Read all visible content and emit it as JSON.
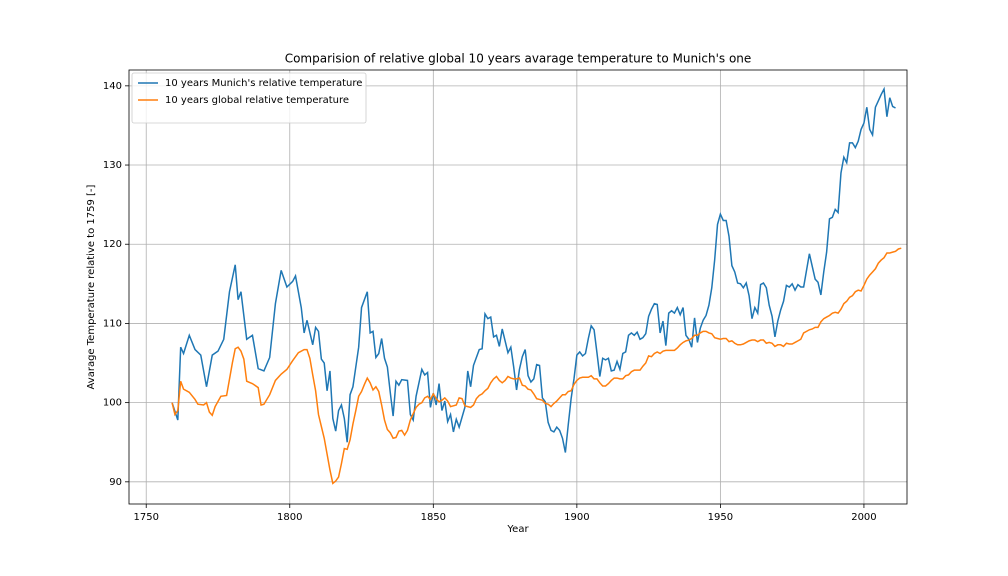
{
  "chart_data": {
    "type": "line",
    "title": "Comparision of relative global 10 years avarage temperature to Munich's one",
    "x_label": "Year",
    "y_label": "Avarage Temperature relative to 1759 [-]",
    "xlim": [
      1744,
      2015
    ],
    "ylim": [
      87.2,
      142
    ],
    "xticks": [
      1750,
      1800,
      1850,
      1900,
      1950,
      2000
    ],
    "yticks": [
      90,
      100,
      110,
      120,
      130,
      140
    ],
    "grid": true,
    "legend": "upper-left",
    "series": [
      {
        "name": "10 years Munich's relative temperature",
        "color": "#1f77b4",
        "x": [
          1759,
          1761,
          1762,
          1763,
          1765,
          1767,
          1769,
          1771,
          1773,
          1775,
          1777,
          1779,
          1781,
          1782,
          1783,
          1785,
          1787,
          1789,
          1791,
          1793,
          1795,
          1797,
          1799,
          1801,
          1802,
          1804,
          1805,
          1806,
          1808,
          1809,
          1810,
          1811,
          1812,
          1813,
          1814,
          1815,
          1816,
          1817,
          1818,
          1819,
          1820,
          1821,
          1822,
          1824,
          1825,
          1827,
          1828,
          1829,
          1830,
          1831,
          1832,
          1833,
          1834,
          1835,
          1836,
          1837,
          1838,
          1839,
          1841,
          1842,
          1843,
          1844,
          1846,
          1847,
          1848,
          1849,
          1850,
          1851,
          1852,
          1853,
          1854,
          1855,
          1856,
          1857,
          1858,
          1859,
          1861,
          1862,
          1863,
          1864,
          1866,
          1867,
          1868,
          1869,
          1870,
          1871,
          1872,
          1873,
          1874,
          1875,
          1876,
          1877,
          1878,
          1879,
          1880,
          1881,
          1882,
          1883,
          1884,
          1885,
          1886,
          1887,
          1888,
          1889,
          1890,
          1891,
          1892,
          1893,
          1894,
          1895,
          1896,
          1897,
          1898,
          1899,
          1900,
          1901,
          1902,
          1903,
          1904,
          1905,
          1906,
          1907,
          1908,
          1909,
          1910,
          1911,
          1912,
          1913,
          1914,
          1915,
          1916,
          1917,
          1918,
          1919,
          1920,
          1921,
          1922,
          1923,
          1924,
          1925,
          1926,
          1927,
          1928,
          1929,
          1930,
          1931,
          1932,
          1933,
          1934,
          1935,
          1936,
          1937,
          1938,
          1939,
          1940,
          1941,
          1942,
          1943,
          1944,
          1945,
          1946,
          1947,
          1948,
          1949,
          1950,
          1951,
          1952,
          1953,
          1954,
          1955,
          1956,
          1957,
          1958,
          1959,
          1960,
          1961,
          1962,
          1963,
          1964,
          1965,
          1966,
          1967,
          1968,
          1969,
          1970,
          1971,
          1972,
          1973,
          1974,
          1975,
          1976,
          1977,
          1978,
          1979,
          1980,
          1981,
          1982,
          1983,
          1984,
          1985,
          1986,
          1987,
          1988,
          1989,
          1990,
          1991,
          1992,
          1993,
          1994,
          1995,
          1996,
          1997,
          1998,
          1999,
          2000,
          2001,
          2002,
          2003,
          2004,
          2005,
          2006,
          2007,
          2008,
          2009,
          2010,
          2011
        ],
        "values": [
          100,
          97.8,
          107,
          106.2,
          108.5,
          106.7,
          106,
          102,
          106,
          106.5,
          108,
          114,
          117.4,
          113,
          114,
          108,
          108.5,
          104.3,
          104,
          105.7,
          112.5,
          116.7,
          114.6,
          115.3,
          116,
          112,
          108.8,
          110.4,
          107.3,
          109.5,
          109,
          105.5,
          105,
          101.5,
          104,
          98,
          96.4,
          99,
          99.7,
          98,
          95,
          101,
          102,
          107,
          112,
          114,
          108.8,
          109,
          105.7,
          106.2,
          108.1,
          105.6,
          104.5,
          101.3,
          98.3,
          102.7,
          102.2,
          102.9,
          102.8,
          98.5,
          97.8,
          100.8,
          104.2,
          103.5,
          103.8,
          99.4,
          101.2,
          99.7,
          102.4,
          99,
          100.2,
          97.6,
          98.5,
          96.3,
          97.9,
          96.9,
          99.4,
          104,
          102,
          104.7,
          106.7,
          106.8,
          111.2,
          110.6,
          110.8,
          108.3,
          108.5,
          107.1,
          109.3,
          107.8,
          106.3,
          107,
          104.5,
          101.6,
          104.2,
          105.8,
          106.7,
          103.4,
          102.6,
          103,
          104.8,
          104.7,
          100.6,
          100.1,
          97.5,
          96.5,
          96.3,
          96.9,
          96.5,
          95.5,
          93.7,
          97.2,
          100.5,
          103,
          106,
          106.4,
          105.9,
          106.2,
          108.1,
          109.7,
          109.2,
          106.3,
          103.3,
          105.6,
          105.4,
          105.6,
          104,
          104.1,
          105.2,
          104.2,
          106.2,
          106.4,
          108.5,
          108.8,
          108.5,
          108.9,
          108,
          108.2,
          108.7,
          110.9,
          111.8,
          112.5,
          112.4,
          108.8,
          110.3,
          107.2,
          111.3,
          111.6,
          111.3,
          112,
          111.1,
          112,
          108.5,
          108,
          107,
          110.7,
          107.6,
          109.4,
          110.4,
          111,
          112.3,
          114.5,
          118,
          122.5,
          123.8,
          123,
          123,
          121,
          117.3,
          116.5,
          115.1,
          115,
          114.5,
          115.1,
          113.5,
          110.6,
          112,
          111.3,
          114.9,
          115.1,
          114.5,
          112.3,
          110.9,
          108.3,
          110.3,
          111.7,
          112.8,
          114.8,
          114.6,
          115,
          114.2,
          114.9,
          114.6,
          114.6,
          116.7,
          118.8,
          117.2,
          115.6,
          115.2,
          113.6,
          116.5,
          119,
          123.2,
          123.4,
          124.4,
          124,
          129,
          131,
          130.3,
          132.8,
          132.8,
          132.2,
          133,
          134.5,
          135.3,
          137.3,
          134.5,
          133.8,
          137.3,
          138.1,
          138.9,
          139.6,
          136.1,
          138.5,
          137.4,
          137.2
        ]
      },
      {
        "name": "10 years global relative temperature",
        "color": "#ff7f0e",
        "x": [
          1759,
          1760,
          1761,
          1762,
          1763,
          1765,
          1767,
          1768,
          1770,
          1771,
          1772,
          1773,
          1774,
          1776,
          1778,
          1780,
          1781,
          1782,
          1783,
          1784,
          1785,
          1787,
          1789,
          1790,
          1791,
          1793,
          1795,
          1797,
          1799,
          1801,
          1803,
          1805,
          1806,
          1807,
          1808,
          1809,
          1810,
          1811,
          1812,
          1813,
          1814,
          1815,
          1816,
          1817,
          1818,
          1819,
          1820,
          1821,
          1822,
          1823,
          1824,
          1825,
          1826,
          1827,
          1828,
          1829,
          1830,
          1831,
          1832,
          1833,
          1834,
          1835,
          1836,
          1837,
          1838,
          1839,
          1840,
          1841,
          1842,
          1843,
          1844,
          1845,
          1846,
          1847,
          1848,
          1849,
          1850,
          1851,
          1852,
          1853,
          1854,
          1855,
          1856,
          1857,
          1858,
          1859,
          1860,
          1861,
          1862,
          1863,
          1864,
          1865,
          1866,
          1867,
          1868,
          1869,
          1870,
          1871,
          1872,
          1873,
          1874,
          1875,
          1876,
          1877,
          1878,
          1879,
          1880,
          1881,
          1882,
          1883,
          1884,
          1885,
          1886,
          1887,
          1888,
          1889,
          1890,
          1891,
          1892,
          1893,
          1894,
          1895,
          1896,
          1897,
          1898,
          1899,
          1900,
          1901,
          1902,
          1903,
          1904,
          1905,
          1906,
          1907,
          1908,
          1909,
          1910,
          1911,
          1912,
          1913,
          1914,
          1915,
          1916,
          1917,
          1918,
          1919,
          1920,
          1921,
          1922,
          1923,
          1924,
          1925,
          1926,
          1927,
          1928,
          1929,
          1930,
          1931,
          1932,
          1933,
          1934,
          1935,
          1936,
          1937,
          1938,
          1939,
          1940,
          1941,
          1942,
          1943,
          1944,
          1945,
          1946,
          1947,
          1948,
          1949,
          1950,
          1951,
          1952,
          1953,
          1954,
          1955,
          1956,
          1957,
          1958,
          1959,
          1960,
          1961,
          1962,
          1963,
          1964,
          1965,
          1966,
          1967,
          1968,
          1969,
          1970,
          1971,
          1972,
          1973,
          1974,
          1975,
          1976,
          1977,
          1978,
          1979,
          1980,
          1981,
          1982,
          1983,
          1984,
          1985,
          1986,
          1987,
          1988,
          1989,
          1990,
          1991,
          1992,
          1993,
          1994,
          1995,
          1996,
          1997,
          1998,
          1999,
          2000,
          2001,
          2002,
          2003,
          2004,
          2005,
          2006,
          2007,
          2008,
          2009,
          2010,
          2011,
          2012,
          2013
        ],
        "values": [
          100,
          98.5,
          99,
          102.7,
          101.7,
          101.3,
          100.4,
          99.8,
          99.7,
          100,
          98.8,
          98.4,
          99.5,
          100.8,
          100.9,
          105,
          106.8,
          107,
          106.5,
          105.5,
          102.7,
          102.4,
          101.9,
          99.7,
          99.8,
          101,
          102.8,
          103.6,
          104.2,
          105.3,
          106.3,
          106.7,
          106.7,
          105.6,
          103.5,
          101.5,
          98.5,
          97,
          95.5,
          93.5,
          91.5,
          89.8,
          90.1,
          90.6,
          92.3,
          94.2,
          94.1,
          95.3,
          97.3,
          99,
          100.8,
          101.4,
          102.3,
          103.1,
          102.5,
          101.6,
          102,
          101.4,
          99.7,
          97.8,
          96.6,
          96.2,
          95.5,
          95.6,
          96.4,
          96.5,
          95.9,
          96.5,
          97.8,
          98.6,
          99.4,
          99.8,
          100,
          100.6,
          100.8,
          100.4,
          101.1,
          100.5,
          100.1,
          100.3,
          100.6,
          100.2,
          99.5,
          99.6,
          99.7,
          100.6,
          100.5,
          99.6,
          99.5,
          99.4,
          99.7,
          100.5,
          100.9,
          101.1,
          101.5,
          101.8,
          102.5,
          103,
          103.3,
          102.8,
          102.5,
          102.8,
          103.3,
          103.1,
          103,
          103,
          103.1,
          102.2,
          102.1,
          101.7,
          101.6,
          101.1,
          100.5,
          100.4,
          100.3,
          99.9,
          99.8,
          99.5,
          99.9,
          100.2,
          100.6,
          101,
          101,
          101.4,
          101.5,
          102.3,
          102.8,
          103.1,
          103.2,
          103.2,
          103.2,
          103.4,
          103,
          103,
          102.5,
          102.1,
          102.1,
          102.4,
          102.8,
          103.1,
          103.1,
          103,
          103,
          103.4,
          103.5,
          103.9,
          104.1,
          104.1,
          104.1,
          104.6,
          105,
          105.9,
          105.8,
          106.2,
          106.4,
          106.2,
          106.5,
          106.6,
          106.6,
          106.6,
          106.6,
          106.9,
          107.3,
          107.6,
          107.8,
          107.9,
          108.1,
          108.5,
          108.5,
          108.8,
          109,
          109,
          108.8,
          108.7,
          108.2,
          108.1,
          108,
          108.1,
          108.1,
          107.7,
          107.8,
          107.5,
          107.3,
          107.3,
          107.4,
          107.6,
          107.8,
          107.9,
          107.9,
          107.7,
          107.9,
          107.9,
          107.5,
          107.6,
          107.5,
          107.1,
          107.3,
          107.3,
          107.1,
          107.5,
          107.4,
          107.4,
          107.6,
          107.8,
          108,
          108.8,
          109,
          109.2,
          109.3,
          109.5,
          109.5,
          110.2,
          110.6,
          110.8,
          111,
          111.3,
          111.4,
          111.3,
          111.8,
          112.5,
          112.8,
          113.3,
          113.5,
          114,
          114.2,
          114.1,
          114.8,
          115.6,
          116.1,
          116.5,
          116.9,
          117.6,
          118,
          118.3,
          118.9,
          118.9,
          119,
          119.1,
          119.4,
          119.5
        ]
      }
    ]
  }
}
